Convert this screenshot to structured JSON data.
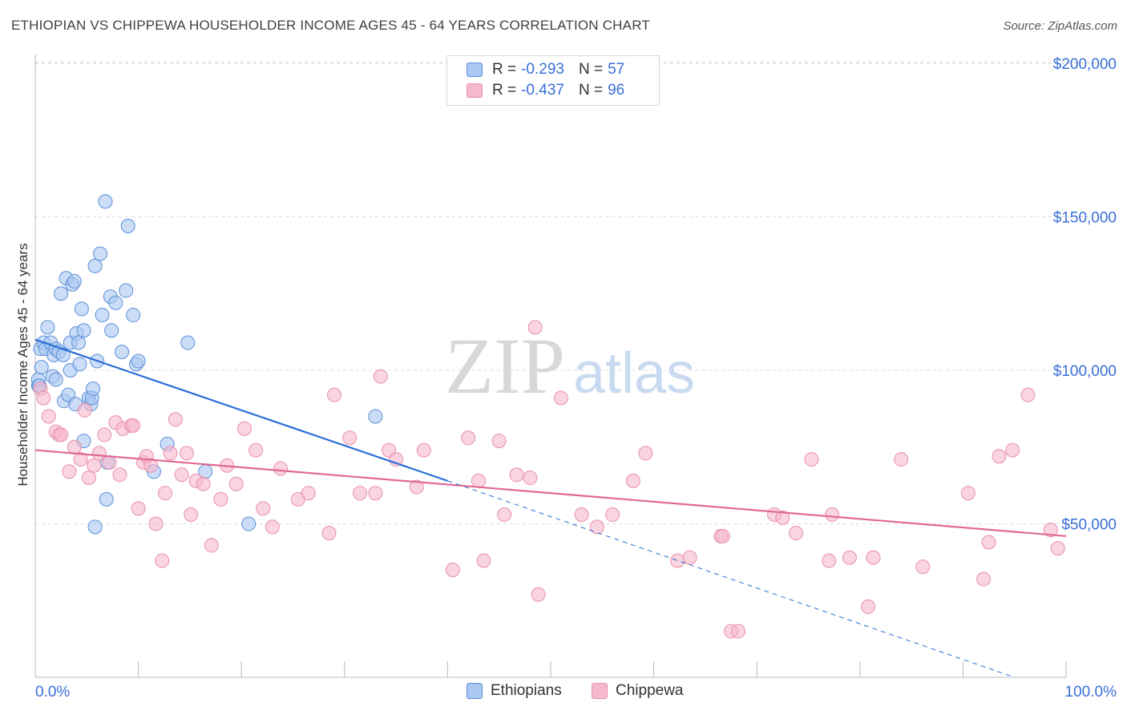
{
  "title": "ETHIOPIAN VS CHIPPEWA HOUSEHOLDER INCOME AGES 45 - 64 YEARS CORRELATION CHART",
  "source": "Source: ZipAtlas.com",
  "watermark": {
    "zip": "ZIP",
    "atlas": "atlas"
  },
  "legend": {
    "ethiopians": {
      "r_label": "R =",
      "r_value": "-0.293",
      "n_label": "N =",
      "n_value": "57"
    },
    "chippewa": {
      "r_label": "R =",
      "r_value": "-0.437",
      "n_label": "N =",
      "n_value": "96"
    }
  },
  "bottom_legend": {
    "ethiopians": "Ethiopians",
    "chippewa": "Chippewa"
  },
  "colors": {
    "ethiopians_fill": "#aac8f2",
    "ethiopians_stroke": "#5b8fd8",
    "ethiopians_line": "#2a6ed6",
    "chippewa_fill": "#f6b8cb",
    "chippewa_stroke": "#e890ab",
    "chippewa_line": "#e06a93",
    "axis_text": "#3a6fd8",
    "grid": "#dddddd"
  },
  "chart_data": {
    "type": "scatter",
    "title": "ETHIOPIAN VS CHIPPEWA HOUSEHOLDER INCOME AGES 45 - 64 YEARS CORRELATION CHART",
    "xlabel": "",
    "ylabel": "Householder Income Ages 45 - 64 years",
    "xlim": [
      0,
      100
    ],
    "ylim": [
      0,
      210000
    ],
    "x_tick_labels": [
      "0.0%",
      "100.0%"
    ],
    "y_ticks": [
      50000,
      100000,
      150000,
      200000
    ],
    "y_tick_labels": [
      "$50,000",
      "$100,000",
      "$150,000",
      "$200,000"
    ],
    "grid": true,
    "series": [
      {
        "name": "Ethiopians",
        "points": [
          [
            0.3,
            95000
          ],
          [
            0.3,
            97000
          ],
          [
            0.5,
            107000
          ],
          [
            0.6,
            101000
          ],
          [
            0.8,
            109000
          ],
          [
            1.0,
            107000
          ],
          [
            1.2,
            114000
          ],
          [
            1.5,
            109000
          ],
          [
            1.7,
            98000
          ],
          [
            1.8,
            105000
          ],
          [
            2.0,
            97000
          ],
          [
            2.0,
            107000
          ],
          [
            2.3,
            106000
          ],
          [
            2.5,
            125000
          ],
          [
            2.7,
            105000
          ],
          [
            2.8,
            90000
          ],
          [
            3.0,
            130000
          ],
          [
            3.2,
            92000
          ],
          [
            3.4,
            109000
          ],
          [
            3.4,
            100000
          ],
          [
            3.6,
            128000
          ],
          [
            3.8,
            129000
          ],
          [
            3.9,
            89000
          ],
          [
            4.0,
            112000
          ],
          [
            4.2,
            109000
          ],
          [
            4.3,
            102000
          ],
          [
            4.5,
            120000
          ],
          [
            4.7,
            113000
          ],
          [
            4.7,
            77000
          ],
          [
            5.2,
            91000
          ],
          [
            5.4,
            89000
          ],
          [
            5.5,
            91000
          ],
          [
            5.6,
            94000
          ],
          [
            5.8,
            134000
          ],
          [
            6.0,
            103000
          ],
          [
            6.3,
            138000
          ],
          [
            6.5,
            118000
          ],
          [
            6.8,
            155000
          ],
          [
            6.9,
            58000
          ],
          [
            7.0,
            70000
          ],
          [
            7.3,
            124000
          ],
          [
            7.4,
            113000
          ],
          [
            7.8,
            122000
          ],
          [
            8.4,
            106000
          ],
          [
            8.8,
            126000
          ],
          [
            9.0,
            147000
          ],
          [
            9.5,
            118000
          ],
          [
            9.8,
            102000
          ],
          [
            10.0,
            103000
          ],
          [
            11.5,
            67000
          ],
          [
            12.8,
            76000
          ],
          [
            14.8,
            109000
          ],
          [
            16.5,
            67000
          ],
          [
            20.7,
            50000
          ],
          [
            5.8,
            49000
          ],
          [
            33.0,
            85000
          ],
          [
            0.4,
            95000
          ]
        ],
        "trend": {
          "x0": 0,
          "y0": 110000,
          "x1": 40,
          "y1": 64000,
          "dashed_to_x": 95,
          "dashed_to_y": 0
        }
      },
      {
        "name": "Chippewa",
        "points": [
          [
            0.5,
            94000
          ],
          [
            0.8,
            91000
          ],
          [
            1.3,
            85000
          ],
          [
            2.0,
            80000
          ],
          [
            2.3,
            79000
          ],
          [
            2.5,
            79000
          ],
          [
            3.3,
            67000
          ],
          [
            3.8,
            75000
          ],
          [
            4.4,
            71000
          ],
          [
            4.8,
            87000
          ],
          [
            5.2,
            65000
          ],
          [
            5.7,
            69000
          ],
          [
            6.2,
            73000
          ],
          [
            6.7,
            79000
          ],
          [
            7.2,
            70000
          ],
          [
            7.8,
            83000
          ],
          [
            8.2,
            66000
          ],
          [
            8.5,
            81000
          ],
          [
            9.3,
            82000
          ],
          [
            9.5,
            82000
          ],
          [
            10.0,
            55000
          ],
          [
            10.5,
            70000
          ],
          [
            10.8,
            72000
          ],
          [
            11.2,
            69000
          ],
          [
            11.7,
            50000
          ],
          [
            12.3,
            38000
          ],
          [
            12.6,
            60000
          ],
          [
            13.1,
            73000
          ],
          [
            13.6,
            84000
          ],
          [
            14.2,
            66000
          ],
          [
            14.7,
            73000
          ],
          [
            15.1,
            53000
          ],
          [
            15.6,
            64000
          ],
          [
            16.3,
            63000
          ],
          [
            17.1,
            43000
          ],
          [
            18.0,
            58000
          ],
          [
            18.6,
            69000
          ],
          [
            19.5,
            63000
          ],
          [
            20.3,
            81000
          ],
          [
            21.4,
            74000
          ],
          [
            22.1,
            55000
          ],
          [
            23.0,
            49000
          ],
          [
            23.8,
            68000
          ],
          [
            25.5,
            58000
          ],
          [
            26.5,
            60000
          ],
          [
            28.5,
            47000
          ],
          [
            29.0,
            92000
          ],
          [
            30.5,
            78000
          ],
          [
            31.5,
            60000
          ],
          [
            33.0,
            60000
          ],
          [
            33.5,
            98000
          ],
          [
            34.3,
            74000
          ],
          [
            35.0,
            71000
          ],
          [
            37.0,
            62000
          ],
          [
            37.7,
            74000
          ],
          [
            40.5,
            35000
          ],
          [
            42.0,
            78000
          ],
          [
            43.0,
            64000
          ],
          [
            43.5,
            38000
          ],
          [
            45.0,
            77000
          ],
          [
            45.5,
            53000
          ],
          [
            46.7,
            66000
          ],
          [
            48.0,
            65000
          ],
          [
            48.5,
            114000
          ],
          [
            48.8,
            27000
          ],
          [
            51.0,
            91000
          ],
          [
            53.0,
            53000
          ],
          [
            54.5,
            49000
          ],
          [
            56.0,
            53000
          ],
          [
            58.0,
            64000
          ],
          [
            59.2,
            73000
          ],
          [
            62.3,
            38000
          ],
          [
            63.5,
            39000
          ],
          [
            66.5,
            46000
          ],
          [
            66.7,
            46000
          ],
          [
            67.5,
            15000
          ],
          [
            68.2,
            15000
          ],
          [
            71.7,
            53000
          ],
          [
            72.5,
            52000
          ],
          [
            73.8,
            47000
          ],
          [
            75.3,
            71000
          ],
          [
            77.0,
            38000
          ],
          [
            77.3,
            53000
          ],
          [
            79.0,
            39000
          ],
          [
            80.8,
            23000
          ],
          [
            81.3,
            39000
          ],
          [
            84.0,
            71000
          ],
          [
            86.1,
            36000
          ],
          [
            90.5,
            60000
          ],
          [
            92.0,
            32000
          ],
          [
            92.5,
            44000
          ],
          [
            93.5,
            72000
          ],
          [
            94.8,
            74000
          ],
          [
            96.3,
            92000
          ],
          [
            98.5,
            48000
          ],
          [
            99.2,
            42000
          ]
        ],
        "trend": {
          "x0": 0,
          "y0": 74000,
          "x1": 100,
          "y1": 46000
        }
      }
    ]
  }
}
